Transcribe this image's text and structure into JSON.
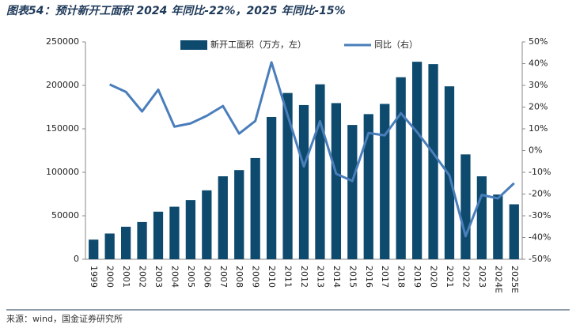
{
  "chart_data": {
    "type": "bar+line",
    "title": "图表54：预计新开工面积 2024 年同比-22%，2025 年同比-15%",
    "source": "来源：wind，国金证券研究所",
    "categories": [
      "1999",
      "2000",
      "2001",
      "2002",
      "2003",
      "2004",
      "2005",
      "2006",
      "2007",
      "2008",
      "2009",
      "2010",
      "2011",
      "2012",
      "2013",
      "2014",
      "2015",
      "2016",
      "2017",
      "2018",
      "2019",
      "2020",
      "2021",
      "2022",
      "2023",
      "2024E",
      "2025E"
    ],
    "series": [
      {
        "name": "新开工面积（万方，左）",
        "color": "#0d4a6e",
        "kind": "bar",
        "values": [
          22579,
          29583,
          37394,
          42801,
          54708,
          60414,
          68064,
          79253,
          95402,
          102553,
          116422,
          163647,
          191237,
          177334,
          201208,
          179592,
          154454,
          166928,
          178654,
          209342,
          227154,
          224433,
          198895,
          120587,
          95376,
          74400,
          63200
        ]
      },
      {
        "name": "同比（右）",
        "color": "#4a7ebb",
        "kind": "line",
        "axis": "y2",
        "values": [
          null,
          30.4,
          27,
          18,
          28,
          11,
          12.5,
          16,
          20.5,
          7.8,
          13.6,
          40.6,
          16.2,
          -7.3,
          13.5,
          -10.7,
          -14,
          8.1,
          7,
          17.2,
          8.5,
          -1.2,
          -11.4,
          -39.4,
          -20.4,
          -22,
          -15
        ]
      }
    ],
    "ylim": [
      0,
      250000
    ],
    "yticks": [
      0,
      50000,
      100000,
      150000,
      200000,
      250000
    ],
    "y2lim": [
      -50,
      50
    ],
    "y2ticks": [
      {
        "value": -50,
        "label": "-50%"
      },
      {
        "value": -40,
        "label": "-40%"
      },
      {
        "value": -30,
        "label": "-30%"
      },
      {
        "value": -20,
        "label": "-20%"
      },
      {
        "value": -10,
        "label": "-10%"
      },
      {
        "value": 0,
        "label": "0%"
      },
      {
        "value": 10,
        "label": "10%"
      },
      {
        "value": 20,
        "label": "20%"
      },
      {
        "value": 30,
        "label": "30%"
      },
      {
        "value": 40,
        "label": "40%"
      },
      {
        "value": 50,
        "label": "50%"
      }
    ],
    "legend": "top"
  }
}
